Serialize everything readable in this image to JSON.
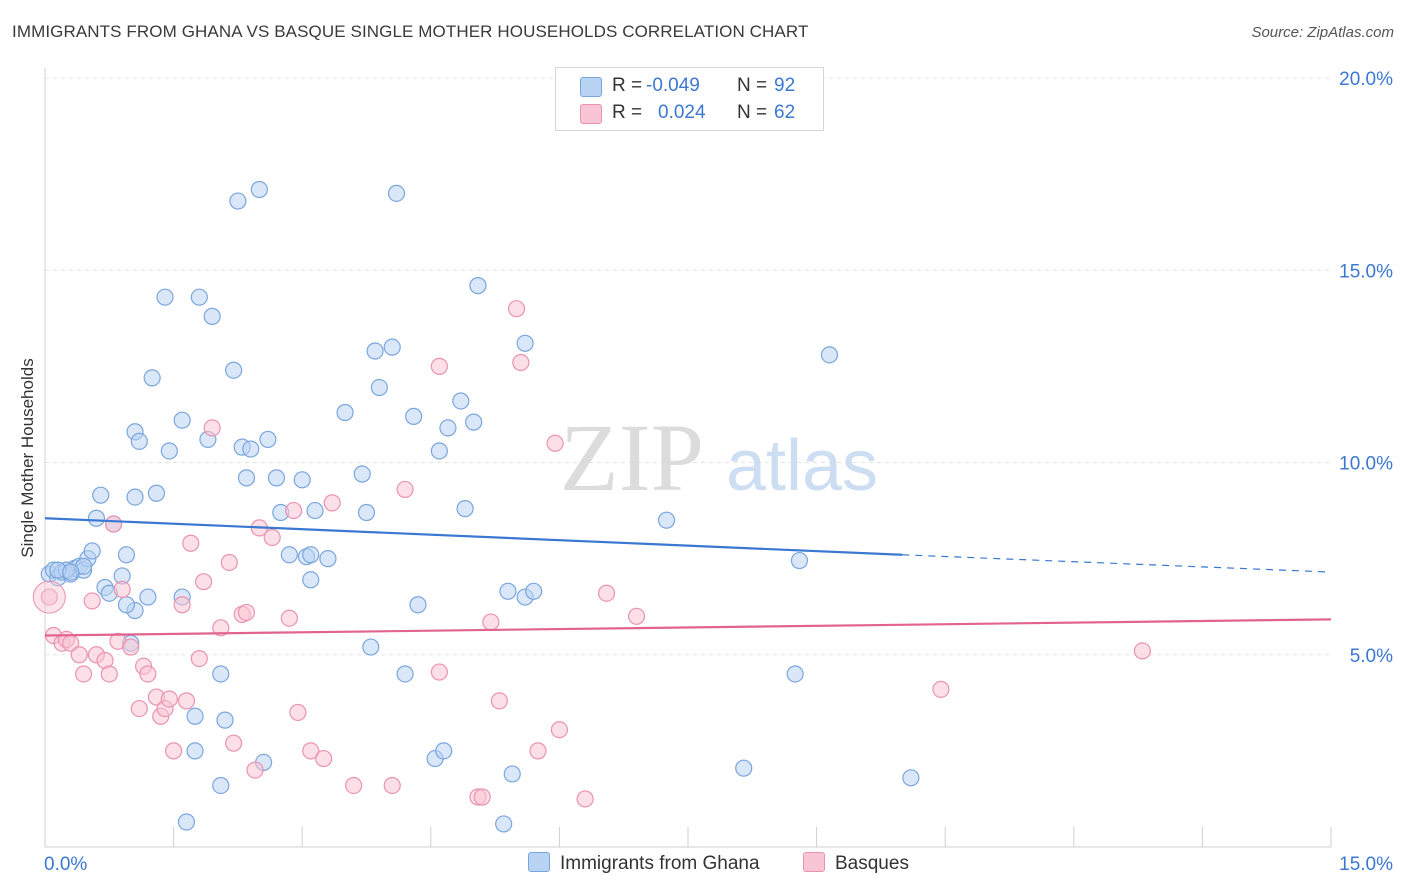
{
  "header": {
    "title": "IMMIGRANTS FROM GHANA VS BASQUE SINGLE MOTHER HOUSEHOLDS CORRELATION CHART",
    "source": "Source: ZipAtlas.com"
  },
  "legend": {
    "r_label": "R =",
    "n_label": "N =",
    "rows": [
      {
        "r": "-0.049",
        "n": "92",
        "color": "#7aa6de"
      },
      {
        "r": "0.024",
        "n": "62",
        "color": "#ea93b0"
      }
    ]
  },
  "watermark": {
    "zip": "ZIP",
    "atlas": "atlas"
  },
  "chart_data": {
    "type": "scatter",
    "ylabel": "Single Mother Households",
    "xlim": [
      0,
      15
    ],
    "ylim": [
      0,
      20
    ],
    "x_tick_labels": [
      {
        "value": 0,
        "label": "0.0%"
      },
      {
        "value": 15,
        "label": "15.0%"
      }
    ],
    "y_tick_labels": [
      {
        "value": 5,
        "label": "5.0%"
      },
      {
        "value": 10,
        "label": "10.0%"
      },
      {
        "value": 15,
        "label": "15.0%"
      },
      {
        "value": 20,
        "label": "20.0%"
      }
    ],
    "grid": true,
    "legend_position": "bottom",
    "series": [
      {
        "name": "Immigrants from Ghana",
        "color": "#7aa6de",
        "fill": "#b9d3f2",
        "trend": {
          "x0": 0,
          "y0": 8.55,
          "x1": 10.0,
          "y1": 7.6,
          "dash_to_x": 15,
          "dash_to_y": 7.15
        },
        "points": [
          [
            0.05,
            7.1
          ],
          [
            0.1,
            7.2
          ],
          [
            0.15,
            7.0
          ],
          [
            0.2,
            7.15
          ],
          [
            0.25,
            7.2
          ],
          [
            0.3,
            7.1
          ],
          [
            0.35,
            7.25
          ],
          [
            0.4,
            7.3
          ],
          [
            0.45,
            7.2
          ],
          [
            0.5,
            7.5
          ],
          [
            0.55,
            7.7
          ],
          [
            0.6,
            8.55
          ],
          [
            0.7,
            6.75
          ],
          [
            0.75,
            6.6
          ],
          [
            0.8,
            8.4
          ],
          [
            0.9,
            7.05
          ],
          [
            0.95,
            7.6
          ],
          [
            1.0,
            5.3
          ],
          [
            1.05,
            6.15
          ],
          [
            1.05,
            10.8
          ],
          [
            1.1,
            10.55
          ],
          [
            1.2,
            6.5
          ],
          [
            1.25,
            12.2
          ],
          [
            1.3,
            9.2
          ],
          [
            1.4,
            14.3
          ],
          [
            1.45,
            10.3
          ],
          [
            1.6,
            11.1
          ],
          [
            1.6,
            6.5
          ],
          [
            1.75,
            3.4
          ],
          [
            1.75,
            2.5
          ],
          [
            1.8,
            14.3
          ],
          [
            1.9,
            10.6
          ],
          [
            1.95,
            13.8
          ],
          [
            2.05,
            1.6
          ],
          [
            2.05,
            4.5
          ],
          [
            2.1,
            3.3
          ],
          [
            2.2,
            12.4
          ],
          [
            2.25,
            16.8
          ],
          [
            2.3,
            10.4
          ],
          [
            2.35,
            9.6
          ],
          [
            2.4,
            10.35
          ],
          [
            2.5,
            17.1
          ],
          [
            2.55,
            2.2
          ],
          [
            2.6,
            10.6
          ],
          [
            2.7,
            9.6
          ],
          [
            2.75,
            8.7
          ],
          [
            2.85,
            7.6
          ],
          [
            3.0,
            9.55
          ],
          [
            3.05,
            7.55
          ],
          [
            3.1,
            6.95
          ],
          [
            3.1,
            7.6
          ],
          [
            3.15,
            8.75
          ],
          [
            3.3,
            7.5
          ],
          [
            3.5,
            11.3
          ],
          [
            3.7,
            9.7
          ],
          [
            3.75,
            8.7
          ],
          [
            3.8,
            5.2
          ],
          [
            3.85,
            12.9
          ],
          [
            3.9,
            11.95
          ],
          [
            4.05,
            13.0
          ],
          [
            4.1,
            17.0
          ],
          [
            4.2,
            4.5
          ],
          [
            4.3,
            11.2
          ],
          [
            4.35,
            6.3
          ],
          [
            4.55,
            2.3
          ],
          [
            4.6,
            10.3
          ],
          [
            4.65,
            2.5
          ],
          [
            4.7,
            10.9
          ],
          [
            4.85,
            11.6
          ],
          [
            4.9,
            8.8
          ],
          [
            5.0,
            11.05
          ],
          [
            5.05,
            14.6
          ],
          [
            5.35,
            0.6
          ],
          [
            5.4,
            6.65
          ],
          [
            5.45,
            1.9
          ],
          [
            5.6,
            6.5
          ],
          [
            5.6,
            13.1
          ],
          [
            5.7,
            6.65
          ],
          [
            7.25,
            8.5
          ],
          [
            8.15,
            2.05
          ],
          [
            8.75,
            4.5
          ],
          [
            8.8,
            7.45
          ],
          [
            9.15,
            12.8
          ],
          [
            10.1,
            1.8
          ],
          [
            1.65,
            0.65
          ],
          [
            0.95,
            6.3
          ],
          [
            0.25,
            7.2
          ],
          [
            0.65,
            9.15
          ],
          [
            1.05,
            9.1
          ],
          [
            0.45,
            7.3
          ],
          [
            0.15,
            7.2
          ],
          [
            0.3,
            7.15
          ]
        ]
      },
      {
        "name": "Basques",
        "color": "#ea93b0",
        "fill": "#f9c4d4",
        "trend": {
          "x0": 0,
          "y0": 5.5,
          "x1": 15,
          "y1": 5.92
        },
        "points": [
          [
            0.05,
            6.5
          ],
          [
            0.1,
            5.5
          ],
          [
            0.2,
            5.3
          ],
          [
            0.25,
            5.4
          ],
          [
            0.3,
            5.3
          ],
          [
            0.4,
            5.0
          ],
          [
            0.45,
            4.5
          ],
          [
            0.55,
            6.4
          ],
          [
            0.6,
            5.0
          ],
          [
            0.7,
            4.85
          ],
          [
            0.8,
            8.4
          ],
          [
            0.85,
            5.35
          ],
          [
            0.9,
            6.7
          ],
          [
            1.0,
            5.2
          ],
          [
            1.1,
            3.6
          ],
          [
            1.15,
            4.7
          ],
          [
            1.2,
            4.5
          ],
          [
            1.3,
            3.9
          ],
          [
            1.35,
            3.4
          ],
          [
            1.4,
            3.6
          ],
          [
            1.45,
            3.85
          ],
          [
            1.5,
            2.5
          ],
          [
            1.6,
            6.3
          ],
          [
            1.65,
            3.8
          ],
          [
            1.7,
            7.9
          ],
          [
            1.8,
            4.9
          ],
          [
            1.85,
            6.9
          ],
          [
            1.95,
            10.9
          ],
          [
            2.05,
            5.7
          ],
          [
            2.15,
            7.4
          ],
          [
            2.2,
            2.7
          ],
          [
            2.3,
            6.05
          ],
          [
            2.35,
            6.1
          ],
          [
            2.45,
            2.0
          ],
          [
            2.5,
            8.3
          ],
          [
            2.65,
            8.05
          ],
          [
            2.85,
            5.95
          ],
          [
            2.9,
            8.75
          ],
          [
            2.95,
            3.5
          ],
          [
            3.1,
            2.5
          ],
          [
            3.25,
            2.3
          ],
          [
            3.35,
            8.95
          ],
          [
            3.6,
            1.6
          ],
          [
            4.05,
            1.6
          ],
          [
            4.2,
            9.3
          ],
          [
            4.6,
            12.5
          ],
          [
            4.6,
            4.55
          ],
          [
            5.05,
            1.3
          ],
          [
            5.1,
            1.3
          ],
          [
            5.2,
            5.85
          ],
          [
            5.3,
            3.8
          ],
          [
            5.5,
            14.0
          ],
          [
            5.55,
            12.6
          ],
          [
            5.75,
            2.5
          ],
          [
            5.95,
            10.5
          ],
          [
            6.0,
            3.05
          ],
          [
            6.3,
            1.25
          ],
          [
            6.55,
            6.6
          ],
          [
            6.9,
            6.0
          ],
          [
            10.45,
            4.1
          ],
          [
            12.8,
            5.1
          ],
          [
            0.75,
            4.5
          ]
        ]
      }
    ]
  }
}
